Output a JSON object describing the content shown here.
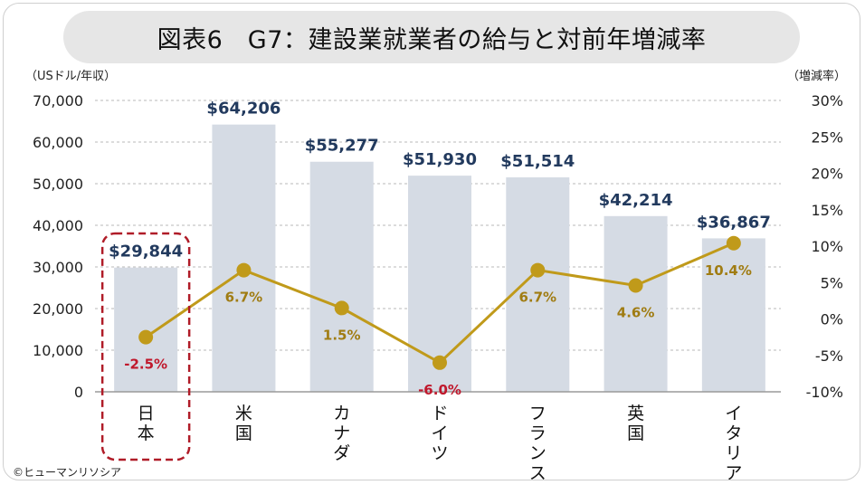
{
  "title": "図表6　G7：建設業就業者の給与と対前年増減率",
  "credit": "©ヒューマンリソシア",
  "chart_data": {
    "type": "bar+line",
    "left_axis_unit": "（USドル/年収）",
    "right_axis_unit": "（増減率）",
    "left_ticks": [
      "0",
      "10,000",
      "20,000",
      "30,000",
      "40,000",
      "50,000",
      "60,000",
      "70,000"
    ],
    "right_ticks": [
      "-10%",
      "-5%",
      "0%",
      "5%",
      "10%",
      "15%",
      "20%",
      "25%",
      "30%"
    ],
    "ylim_left": [
      0,
      70000
    ],
    "ylim_right": [
      -10,
      30
    ],
    "grid": true,
    "categories": [
      "日本",
      "米国",
      "カナダ",
      "ドイツ",
      "フランス",
      "英国",
      "イタリア"
    ],
    "category_labels_vertical": [
      [
        "日",
        "本"
      ],
      [
        "米",
        "国"
      ],
      [
        "カ",
        "ナ",
        "ダ"
      ],
      [
        "ド",
        "イ",
        "ツ"
      ],
      [
        "フ",
        "ラ",
        "ン",
        "ス"
      ],
      [
        "英",
        "国"
      ],
      [
        "イ",
        "タ",
        "リ",
        "ア"
      ]
    ],
    "bars": {
      "values": [
        29844,
        64206,
        55277,
        51930,
        51514,
        42214,
        36867
      ],
      "labels": [
        "$29,844",
        "$64,206",
        "$55,277",
        "$51,930",
        "$51,514",
        "$42,214",
        "$36,867"
      ],
      "color": "#d5dbe4",
      "label_color": "#223a5e"
    },
    "line": {
      "values": [
        -2.5,
        6.7,
        1.5,
        -6.0,
        6.7,
        4.6,
        10.4
      ],
      "labels": [
        "-2.5%",
        "6.7%",
        "1.5%",
        "-6.0%",
        "6.7%",
        "4.6%",
        "10.4%"
      ],
      "color": "#c09a1a",
      "label_color": "#a07c12",
      "negative_label_color": "#c0182c"
    },
    "highlight": {
      "category": "日本",
      "color": "#b01c28"
    }
  }
}
